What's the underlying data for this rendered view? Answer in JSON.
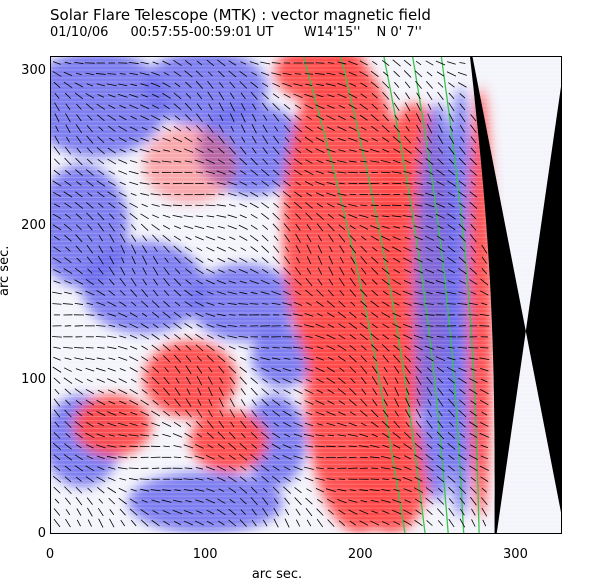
{
  "header": {
    "title": "Solar Flare Telescope (MTK) : vector magnetic field",
    "date": "01/10/06",
    "time_range": "00:57:55-00:59:01 UT",
    "coord_lon": "W14'15''",
    "coord_lat": "N 0' 7''"
  },
  "chart_data": {
    "type": "heatmap",
    "title": "Solar Flare Telescope (MTK) : vector magnetic field",
    "xlabel": "arc sec.",
    "ylabel": "arc sec.",
    "xlim": [
      0,
      330
    ],
    "ylim": [
      0,
      310
    ],
    "xticks": [
      "0",
      "100",
      "200",
      "300"
    ],
    "yticks": [
      "0",
      "100",
      "200",
      "300"
    ],
    "colors": {
      "positive": "#ff4a4a",
      "negative": "#6a6aef",
      "neutral": "#f4f4fb",
      "off_disk": "#000000",
      "contour": "#39c44b",
      "vector": "#000000"
    },
    "limb": {
      "description": "solar limb / off-disk region (black) to the right",
      "limb_x_at_y0": 287,
      "limb_x_at_y310": 270
    },
    "contours_description": "green contour lines near the limb, roughly parallel to it"
  }
}
